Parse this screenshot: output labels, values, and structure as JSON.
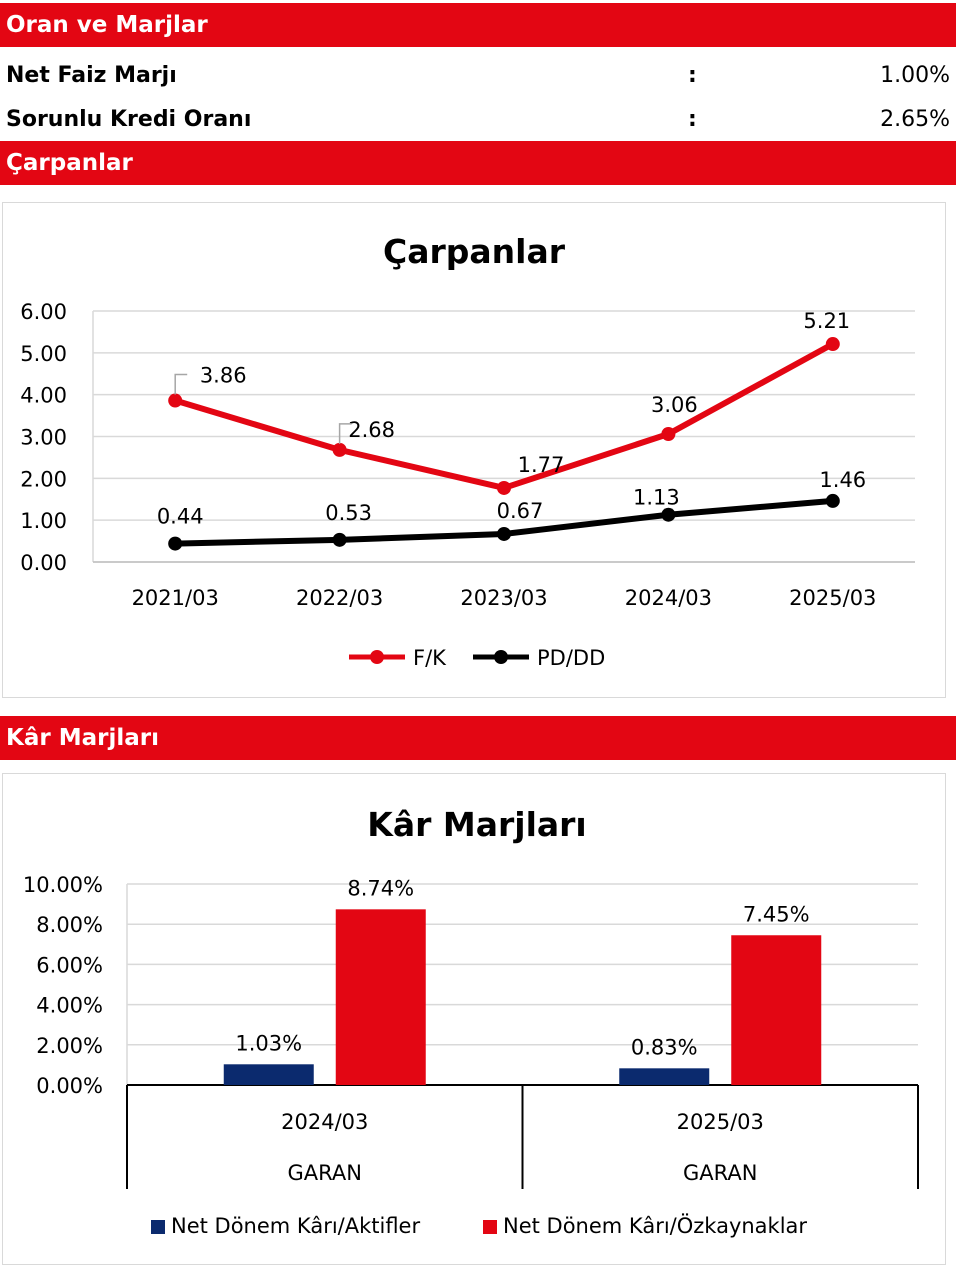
{
  "sections": {
    "oran_title": "Oran ve Marjlar",
    "carpan_title": "Çarpanlar",
    "kar_title": "Kâr Marjları"
  },
  "ratios": [
    {
      "label": "Net Faiz Marjı",
      "sep": ":",
      "value": "1.00%"
    },
    {
      "label": "Sorunlu Kredi Oranı",
      "sep": ":",
      "value": "2.65%"
    }
  ],
  "colors": {
    "brand_red": "#e30613",
    "navy": "#0b2a6e",
    "black": "#000000"
  },
  "chart_data": [
    {
      "type": "line",
      "title": "Çarpanlar",
      "categories": [
        "2021/03",
        "2022/03",
        "2023/03",
        "2024/03",
        "2025/03"
      ],
      "series": [
        {
          "name": "F/K",
          "color": "#e30613",
          "values": [
            3.86,
            2.68,
            1.77,
            3.06,
            5.21
          ]
        },
        {
          "name": "PD/DD",
          "color": "#000000",
          "values": [
            0.44,
            0.53,
            0.67,
            1.13,
            1.46
          ]
        }
      ],
      "yticks": [
        "6.00",
        "5.00",
        "4.00",
        "3.00",
        "2.00",
        "1.00",
        "0.00"
      ],
      "ylim": [
        0,
        6
      ],
      "grid": true,
      "legend": "bottom"
    },
    {
      "type": "bar",
      "title": "Kâr Marjları",
      "categories": [
        {
          "period": "2024/03",
          "ticker": "GARAN"
        },
        {
          "period": "2025/03",
          "ticker": "GARAN"
        }
      ],
      "series": [
        {
          "name": "Net Dönem Kârı/Aktifler",
          "color": "#0b2a6e",
          "values": [
            1.03,
            0.83
          ],
          "labels": [
            "1.03%",
            "0.83%"
          ]
        },
        {
          "name": "Net Dönem Kârı/Özkaynaklar",
          "color": "#e30613",
          "values": [
            8.74,
            7.45
          ],
          "labels": [
            "8.74%",
            "7.45%"
          ]
        }
      ],
      "yticks": [
        "10.00%",
        "8.00%",
        "6.00%",
        "4.00%",
        "2.00%",
        "0.00%"
      ],
      "ylim": [
        0,
        10
      ],
      "grid": true,
      "legend": "bottom"
    }
  ]
}
